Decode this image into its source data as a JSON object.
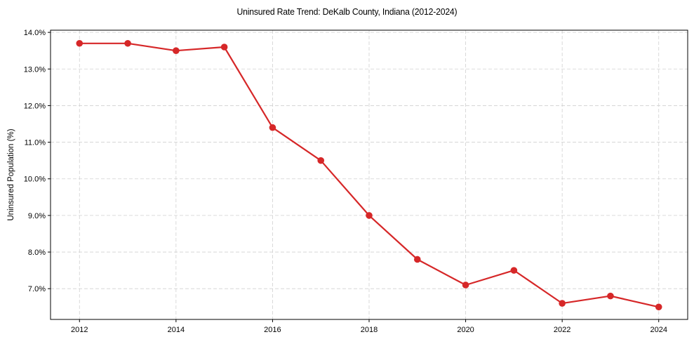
{
  "chart_data": {
    "type": "line",
    "title": "Uninsured Rate Trend: DeKalb County, Indiana (2012-2024)",
    "xlabel": "",
    "ylabel": "Uninsured Population (%)",
    "x": [
      2012,
      2013,
      2014,
      2015,
      2016,
      2017,
      2018,
      2019,
      2020,
      2021,
      2022,
      2023,
      2024
    ],
    "series": [
      {
        "name": "Uninsured Rate",
        "values": [
          13.7,
          13.7,
          13.5,
          13.6,
          11.4,
          10.5,
          9.0,
          7.8,
          7.1,
          7.5,
          6.6,
          6.8,
          6.5
        ],
        "color": "#d62728",
        "marker": "circle"
      }
    ],
    "x_ticks": [
      "2012",
      "2014",
      "2016",
      "2018",
      "2020",
      "2022",
      "2024"
    ],
    "y_ticks": [
      "7.0%",
      "8.0%",
      "9.0%",
      "10.0%",
      "11.0%",
      "12.0%",
      "13.0%",
      "14.0%"
    ],
    "xlim": [
      2011.4,
      2024.6
    ],
    "ylim": [
      6.16,
      14.06
    ],
    "grid": true,
    "grid_style": "dashed",
    "legend": null
  }
}
